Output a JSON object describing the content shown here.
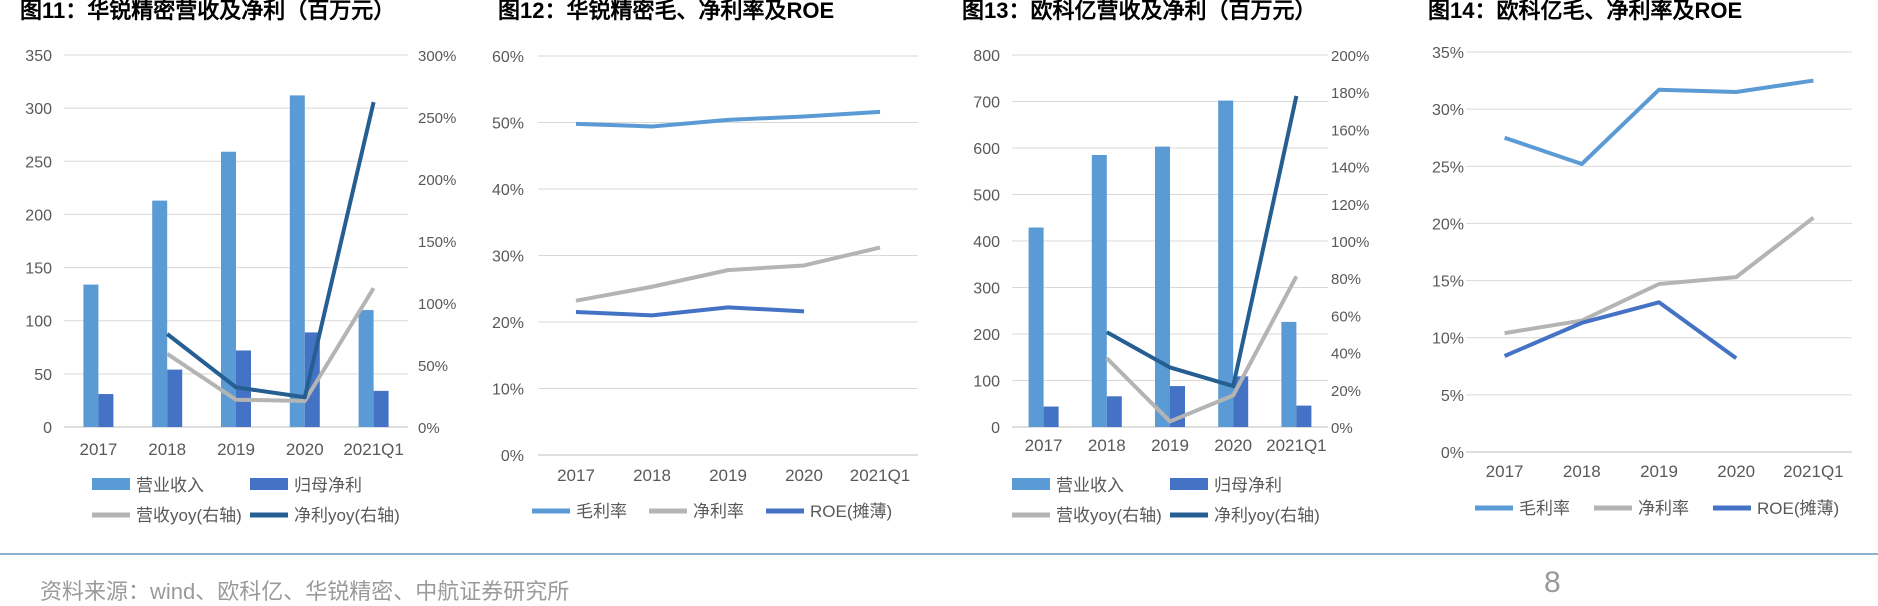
{
  "colors": {
    "bar1": "#5b9bd5",
    "bar2": "#4472c4",
    "line_gray": "#b4b4b4",
    "line_dark": "#255e91",
    "line_light": "#5b9bd5",
    "line_mid": "#4472c4",
    "grid": "#d9d9d9",
    "text": "#595959"
  },
  "footer": {
    "source": "资料来源：wind、欧科亿、华锐精密、中航证券研究所",
    "page": "8"
  },
  "chart_data": [
    {
      "type": "bar",
      "title": "图11：华锐精密营收及净利（百万元）",
      "categories": [
        "2017",
        "2018",
        "2019",
        "2020",
        "2021Q1"
      ],
      "y_ticks": [
        "0",
        "50",
        "100",
        "150",
        "200",
        "250",
        "300",
        "350"
      ],
      "y2_ticks": [
        "0%",
        "50%",
        "100%",
        "150%",
        "200%",
        "250%",
        "300%"
      ],
      "ylim": [
        0,
        350
      ],
      "y2lim": [
        0,
        300
      ],
      "series": [
        {
          "name": "营业收入",
          "kind": "bar",
          "values": [
            134,
            213,
            259,
            312,
            110
          ]
        },
        {
          "name": "归母净利",
          "kind": "bar",
          "values": [
            31,
            54,
            72,
            89,
            34
          ]
        },
        {
          "name": "营收yoy(右轴)",
          "kind": "line",
          "axis": "right",
          "values": [
            null,
            59,
            22,
            21,
            112
          ]
        },
        {
          "name": "净利yoy(右轴)",
          "kind": "line",
          "axis": "right",
          "values": [
            null,
            75,
            32,
            24,
            262
          ]
        }
      ]
    },
    {
      "type": "line",
      "title": "图12：华锐精密毛、净利率及ROE",
      "categories": [
        "2017",
        "2018",
        "2019",
        "2020",
        "2021Q1"
      ],
      "y_ticks": [
        "0%",
        "10%",
        "20%",
        "30%",
        "40%",
        "50%",
        "60%"
      ],
      "ylim": [
        0,
        60
      ],
      "series": [
        {
          "name": "毛利率",
          "values": [
            49.8,
            49.4,
            50.4,
            50.9,
            51.6
          ]
        },
        {
          "name": "净利率",
          "values": [
            23.2,
            25.3,
            27.8,
            28.5,
            31.2
          ]
        },
        {
          "name": "ROE(摊薄)",
          "values": [
            21.5,
            21.0,
            22.2,
            21.6,
            null
          ]
        }
      ]
    },
    {
      "type": "bar",
      "title": "图13：欧科亿营收及净利（百万元）",
      "categories": [
        "2017",
        "2018",
        "2019",
        "2020",
        "2021Q1"
      ],
      "y_ticks": [
        "0",
        "100",
        "200",
        "300",
        "400",
        "500",
        "600",
        "700",
        "800"
      ],
      "y2_ticks": [
        "0%",
        "20%",
        "40%",
        "60%",
        "80%",
        "100%",
        "120%",
        "140%",
        "160%",
        "180%",
        "200%"
      ],
      "ylim": [
        0,
        800
      ],
      "y2lim": [
        0,
        200
      ],
      "series": [
        {
          "name": "营业收入",
          "kind": "bar",
          "values": [
            429,
            585,
            603,
            702,
            226
          ]
        },
        {
          "name": "归母净利",
          "kind": "bar",
          "values": [
            44,
            66,
            88,
            109,
            46
          ]
        },
        {
          "name": "营收yoy(右轴)",
          "kind": "line",
          "axis": "right",
          "values": [
            null,
            37,
            3,
            17,
            81
          ]
        },
        {
          "name": "净利yoy(右轴)",
          "kind": "line",
          "axis": "right",
          "values": [
            null,
            51,
            32,
            22,
            178
          ]
        }
      ]
    },
    {
      "type": "line",
      "title": "图14：欧科亿毛、净利率及ROE",
      "categories": [
        "2017",
        "2018",
        "2019",
        "2020",
        "2021Q1"
      ],
      "y_ticks": [
        "0%",
        "5%",
        "10%",
        "15%",
        "20%",
        "25%",
        "30%",
        "35%"
      ],
      "ylim": [
        0,
        35
      ],
      "series": [
        {
          "name": "毛利率",
          "values": [
            27.5,
            25.2,
            31.7,
            31.5,
            32.5
          ]
        },
        {
          "name": "净利率",
          "values": [
            10.4,
            11.5,
            14.7,
            15.3,
            20.5
          ]
        },
        {
          "name": "ROE(摊薄)",
          "values": [
            8.4,
            11.3,
            13.1,
            8.2,
            null
          ]
        }
      ]
    }
  ]
}
